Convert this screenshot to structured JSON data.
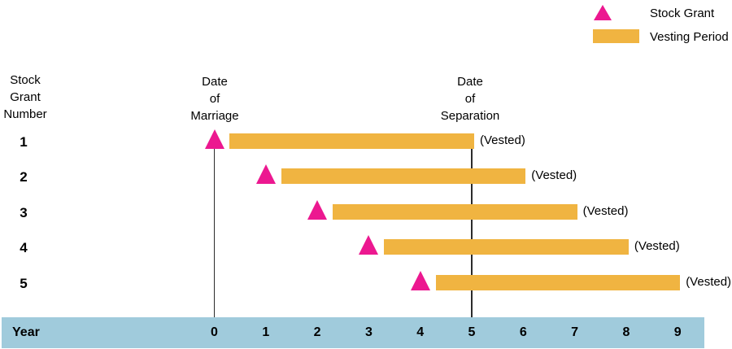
{
  "colors": {
    "grant_marker": "#EC1890",
    "vesting_bar": "#F0B441",
    "year_band": "#A0CBDC",
    "marker_line": "#2B2B2B",
    "text": "#000000"
  },
  "legend": {
    "items": [
      {
        "label": "Stock Grant",
        "symbol": "triangle-icon",
        "color": "#EC1890"
      },
      {
        "label": "Vesting Period",
        "symbol": "bar-icon",
        "color": "#F0B441"
      }
    ]
  },
  "headers": {
    "stock_grant_number": [
      "Stock",
      "Grant",
      "Number"
    ],
    "date_of_marriage": [
      "Date",
      "of",
      "Marriage"
    ],
    "date_of_separation": [
      "Date",
      "of",
      "Separation"
    ]
  },
  "axis": {
    "label": "Year",
    "ticks": [
      "0",
      "1",
      "2",
      "3",
      "4",
      "5",
      "6",
      "7",
      "8",
      "9"
    ]
  },
  "chart_data": {
    "type": "bar",
    "orientation": "horizontal-timeline",
    "title": "",
    "xlabel": "Year",
    "x_ticks": [
      0,
      1,
      2,
      3,
      4,
      5,
      6,
      7,
      8,
      9
    ],
    "xlim": [
      0,
      9
    ],
    "legend": [
      "Stock Grant",
      "Vesting Period"
    ],
    "markers": [
      {
        "name": "date-of-marriage",
        "label_lines": [
          "Date",
          "of",
          "Marriage"
        ],
        "year": 0
      },
      {
        "name": "date-of-separation",
        "label_lines": [
          "Date",
          "of",
          "Separation"
        ],
        "year": 5
      }
    ],
    "rows": [
      {
        "grant_number": "1",
        "grant_year": 0,
        "vest_start": 0.3,
        "vest_end": 5,
        "annotation": "(Vested)"
      },
      {
        "grant_number": "2",
        "grant_year": 1,
        "vest_start": 1.3,
        "vest_end": 6,
        "annotation": "(Vested)"
      },
      {
        "grant_number": "3",
        "grant_year": 2,
        "vest_start": 2.3,
        "vest_end": 7,
        "annotation": "(Vested)"
      },
      {
        "grant_number": "4",
        "grant_year": 3,
        "vest_start": 3.3,
        "vest_end": 8,
        "annotation": "(Vested)"
      },
      {
        "grant_number": "5",
        "grant_year": 4,
        "vest_start": 4.3,
        "vest_end": 9,
        "annotation": "(Vested)"
      }
    ]
  }
}
